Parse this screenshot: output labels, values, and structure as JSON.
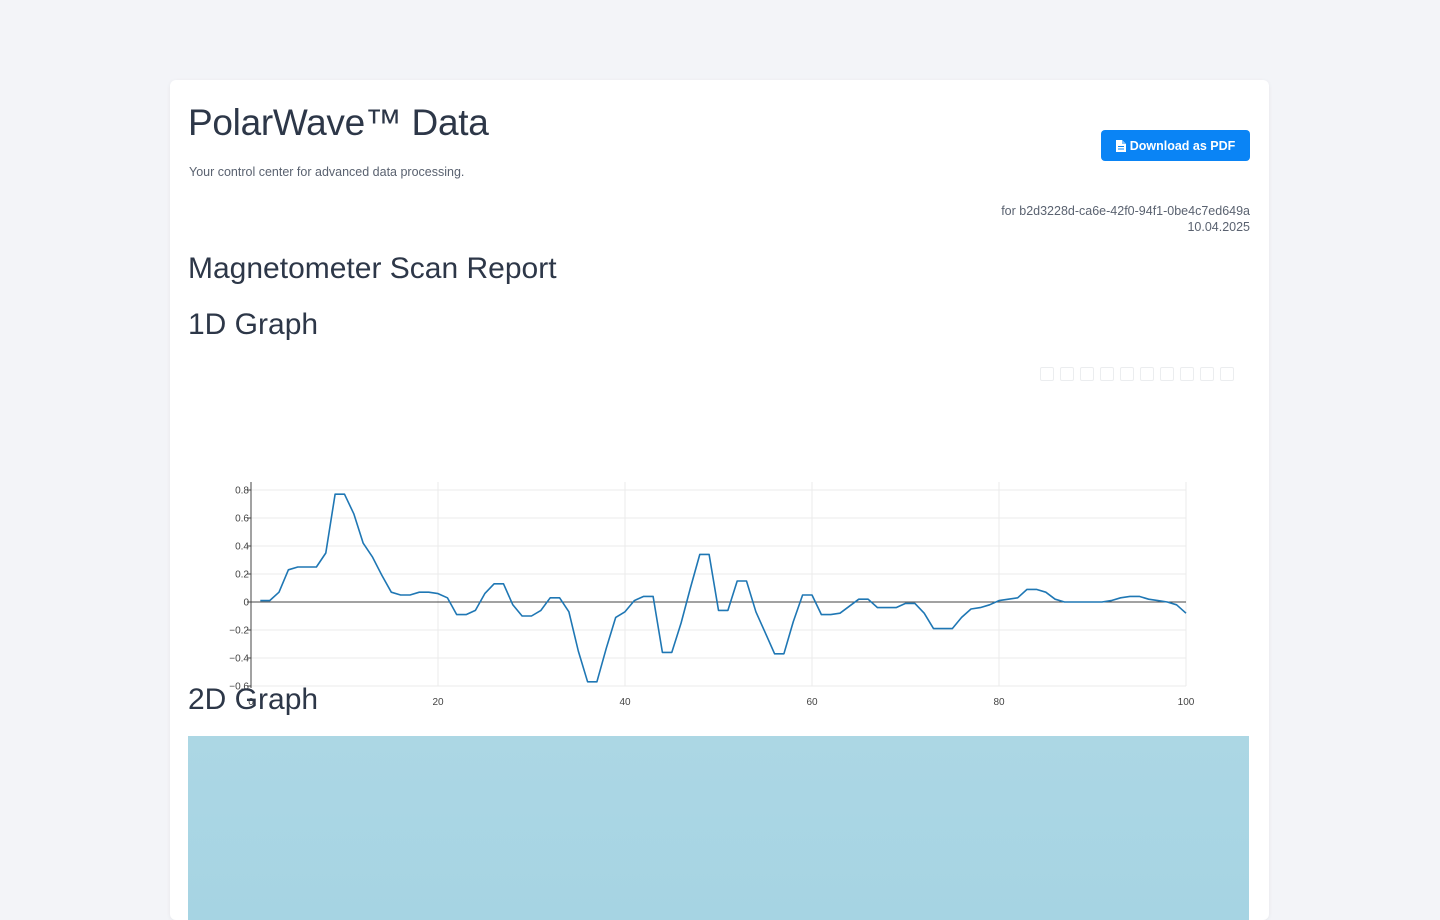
{
  "header": {
    "title": "PolarWave™ Data",
    "subtitle": "Your control center for advanced data processing.",
    "download_label": "Download as PDF",
    "meta_id": "for b2d3228d-ca6e-42f0-94f1-0be4c7ed649a",
    "meta_date": "10.04.2025"
  },
  "report": {
    "title": "Magnetometer Scan Report",
    "graph1_title": "1D Graph",
    "graph2_title": "2D Graph"
  },
  "colors": {
    "accent": "#0a84f5",
    "line": "#1f77b4",
    "heatmap": "#acd7e4"
  },
  "chart_data": {
    "type": "line",
    "title": "",
    "xlabel": "",
    "ylabel": "",
    "xlim": [
      0,
      100
    ],
    "ylim": [
      -0.6,
      0.8
    ],
    "xticks": [
      0,
      20,
      40,
      60,
      80,
      100
    ],
    "yticks": [
      0.8,
      0.6,
      0.4,
      0.2,
      0,
      -0.2,
      -0.4,
      -0.6
    ],
    "ytick_labels": [
      "0.8",
      "0.6",
      "0.4",
      "0.2",
      "0",
      "−0.2",
      "−0.4",
      "−0.6"
    ],
    "grid": true,
    "series": [
      {
        "x": [
          1,
          2,
          3,
          4,
          5,
          6,
          7,
          8,
          9,
          10,
          11,
          12,
          13,
          14,
          15,
          16,
          17,
          18,
          19,
          20,
          21,
          22,
          23,
          24,
          25,
          26,
          27,
          28,
          29,
          30,
          31,
          32,
          33,
          34,
          35,
          36,
          37,
          38,
          39,
          40,
          41,
          42,
          43,
          44,
          45,
          46,
          47,
          48,
          49,
          50,
          51,
          52,
          53,
          54,
          55,
          56,
          57,
          58,
          59,
          60,
          61,
          62,
          63,
          64,
          65,
          66,
          67,
          68,
          69,
          70,
          71,
          72,
          73,
          74,
          75,
          76,
          77,
          78,
          79,
          80,
          81,
          82,
          83,
          84,
          85,
          86,
          87,
          88,
          89,
          90,
          91,
          92,
          93,
          94,
          95,
          96,
          97,
          98,
          99,
          100
        ],
        "y": [
          0.01,
          0.01,
          0.07,
          0.23,
          0.25,
          0.25,
          0.25,
          0.35,
          0.77,
          0.77,
          0.63,
          0.42,
          0.32,
          0.19,
          0.07,
          0.05,
          0.05,
          0.07,
          0.07,
          0.06,
          0.03,
          -0.09,
          -0.09,
          -0.06,
          0.06,
          0.13,
          0.13,
          -0.02,
          -0.1,
          -0.1,
          -0.06,
          0.03,
          0.03,
          -0.07,
          -0.35,
          -0.57,
          -0.57,
          -0.33,
          -0.11,
          -0.07,
          0.01,
          0.04,
          0.04,
          -0.36,
          -0.36,
          -0.15,
          0.1,
          0.34,
          0.34,
          -0.06,
          -0.06,
          0.15,
          0.15,
          -0.07,
          -0.22,
          -0.37,
          -0.37,
          -0.14,
          0.05,
          0.05,
          -0.09,
          -0.09,
          -0.08,
          -0.03,
          0.02,
          0.02,
          -0.04,
          -0.04,
          -0.04,
          -0.01,
          -0.01,
          -0.08,
          -0.19,
          -0.19,
          -0.19,
          -0.11,
          -0.05,
          -0.04,
          -0.02,
          0.01,
          0.02,
          0.03,
          0.09,
          0.09,
          0.07,
          0.02,
          0.0,
          0.0,
          0.0,
          0.0,
          0.0,
          0.01,
          0.03,
          0.04,
          0.04,
          0.02,
          0.01,
          0.0,
          -0.02,
          -0.08
        ]
      }
    ]
  }
}
